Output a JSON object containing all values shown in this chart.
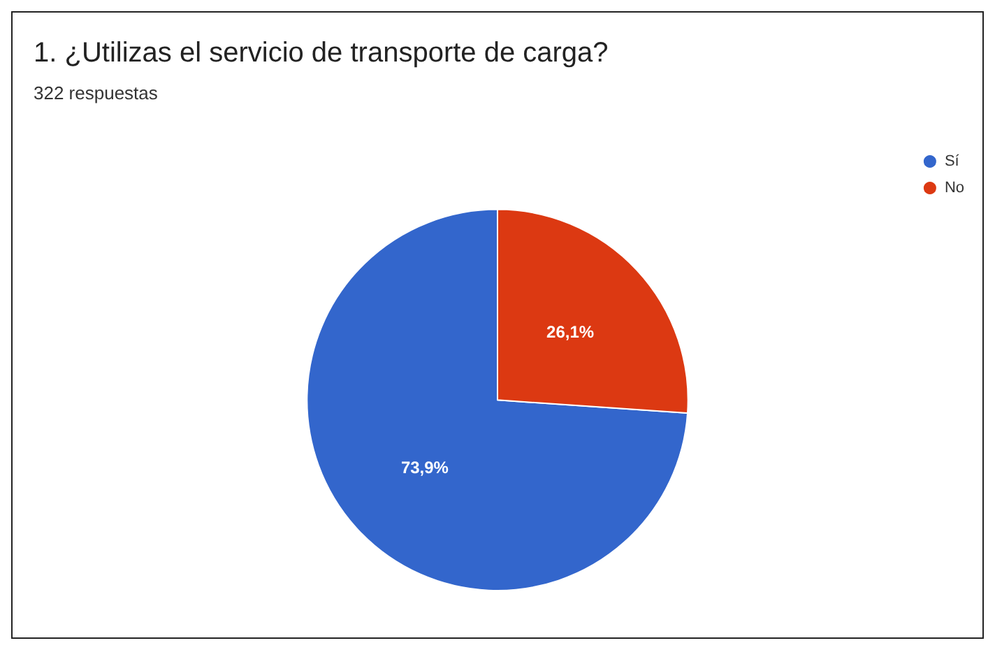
{
  "chart_data": {
    "type": "pie",
    "title": "1. ¿Utilizas el servicio de transporte de carga?",
    "subtitle": "322 respuestas",
    "categories": [
      "Sí",
      "No"
    ],
    "values": [
      73.9,
      26.1
    ],
    "value_labels": [
      "73,9%",
      "26,1%"
    ],
    "colors": [
      "#3366cc",
      "#dc3912"
    ],
    "legend": "top right"
  }
}
